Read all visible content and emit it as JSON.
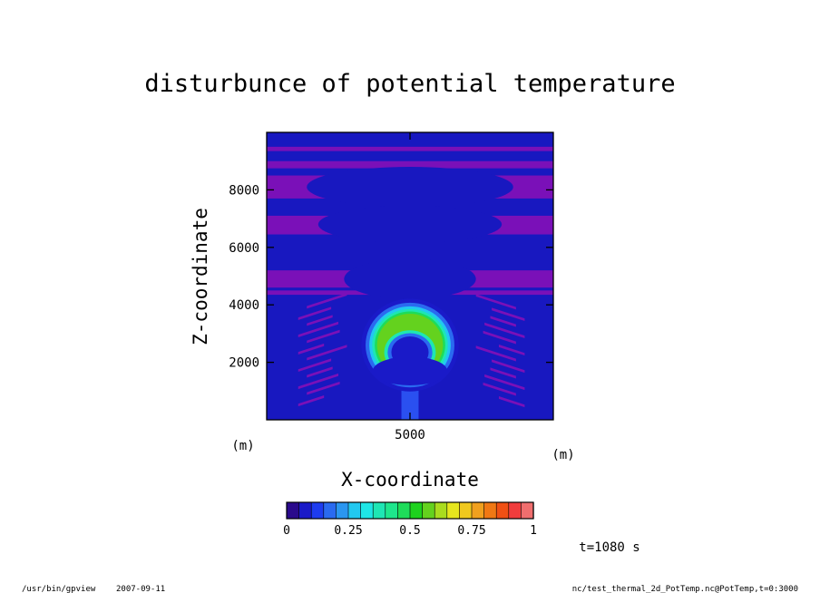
{
  "chart_data": {
    "type": "heatmap",
    "title": "disturbunce of potential temperature",
    "xlabel": "X-coordinate",
    "ylabel": "Z-coordinate",
    "x_unit": "(m)",
    "y_unit": "(m)",
    "xlim": [
      0,
      10000
    ],
    "ylim": [
      0,
      10000
    ],
    "x_ticks": [
      "5000"
    ],
    "y_ticks": [
      "2000",
      "4000",
      "6000",
      "8000"
    ],
    "x_tick_values": [
      5000
    ],
    "y_tick_values": [
      2000,
      4000,
      6000,
      8000
    ],
    "colorbar": {
      "levels": [
        0,
        0.05,
        0.1,
        0.15,
        0.2,
        0.25,
        0.3,
        0.35,
        0.4,
        0.45,
        0.5,
        0.55,
        0.6,
        0.65,
        0.7,
        0.75,
        0.8,
        0.85,
        0.9,
        0.95,
        1
      ],
      "tick_labels": [
        "0",
        "0.25",
        "0.5",
        "0.75",
        "1"
      ],
      "tick_values": [
        0,
        0.25,
        0.5,
        0.75,
        1
      ],
      "colors": [
        "#2a0a8c",
        "#1a1ac8",
        "#1e3cf0",
        "#2a6af0",
        "#2a96f0",
        "#22c8f0",
        "#1ee6e6",
        "#1ee6b4",
        "#1ee68c",
        "#1edc5a",
        "#1ed21e",
        "#64d21e",
        "#aadc1e",
        "#e6e61e",
        "#f0c81e",
        "#f0a01e",
        "#f07814",
        "#f05014",
        "#f03c3c",
        "#f06e6e"
      ],
      "low_color": "#2a0a8c",
      "high_color": "#f0a0a0"
    },
    "background_colors": {
      "negative": "#7a10b8",
      "zero_band": "#1818c0",
      "plume_core": "#2a50f0"
    },
    "thermal_bubble": {
      "center_x": 5000,
      "center_z": 2600,
      "max_value": 0.55
    }
  },
  "footer": {
    "time_label": "t=1080 s",
    "program_path": "/usr/bin/gpview",
    "date": "2007-09-11",
    "source": "nc/test_thermal_2d_PotTemp.nc@PotTemp,t=0:3000"
  }
}
